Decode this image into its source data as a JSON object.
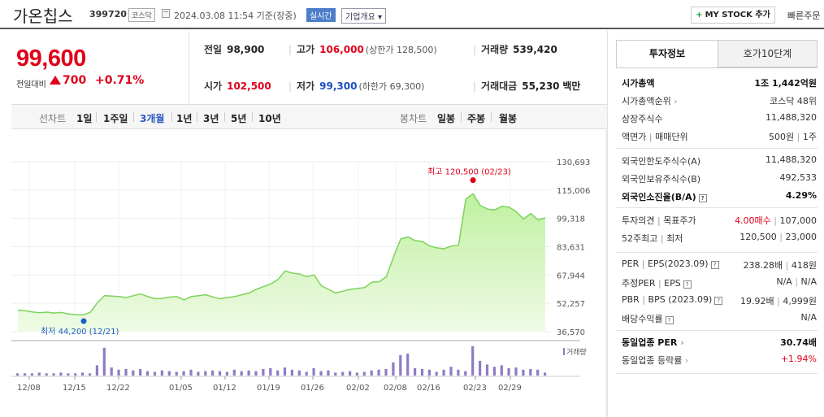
{
  "header": {
    "name": "가온칩스",
    "code": "399720",
    "market": "코스닥",
    "datetime": "2024.03.08 11:54 기준(장중)",
    "realtime_badge": "실시간",
    "corp_info_label": "기업개요 ▾",
    "mystock_label": "MY STOCK 추가",
    "mystock_plus": "+",
    "quick_order_label": "빠른주문"
  },
  "price": {
    "current": "99,600",
    "compare_label": "전일대비",
    "change": "700",
    "change_pct": "+0.71%",
    "direction": "up"
  },
  "stats": {
    "prev_close": {
      "label": "전일",
      "value": "98,900"
    },
    "open": {
      "label": "시가",
      "value": "102,500"
    },
    "high": {
      "label": "고가",
      "value": "106,000",
      "sub": "(상한가 128,500)"
    },
    "low": {
      "label": "저가",
      "value": "99,300",
      "sub": "(하한가 69,300)"
    },
    "volume": {
      "label": "거래량",
      "value": "539,420"
    },
    "amount": {
      "label": "거래대금",
      "value": "55,230",
      "unit": "백만"
    }
  },
  "period_bar": {
    "line_label": "선차트",
    "line_items": [
      "1일",
      "1주일",
      "3개월",
      "1년",
      "3년",
      "5년",
      "10년"
    ],
    "active": "3개월",
    "candle_label": "봉차트",
    "candle_items": [
      "일봉",
      "주봉",
      "월봉"
    ]
  },
  "chart_data": {
    "type": "area",
    "y_ticks": [
      "130,693",
      "115,006",
      "99,318",
      "83,631",
      "67,944",
      "52,257",
      "36,570"
    ],
    "ylim": [
      36570,
      130693
    ],
    "x_ticks": [
      "12/08",
      "12/15",
      "12/22",
      "01/05",
      "01/12",
      "01/19",
      "01/26",
      "02/02",
      "02/08",
      "02/16",
      "02/23",
      "02/29"
    ],
    "high_annotation": "최고 120,500 (02/23)",
    "low_annotation": "최저 44,200 (12/21)",
    "high_value": 120500,
    "low_value": 44200,
    "colors": {
      "line": "#7dd35a",
      "fill": "#c8f0a8",
      "marker": "#e0001a",
      "low_marker": "#1a5fc4",
      "volume": "#8e7cc3"
    },
    "prices": [
      48500,
      48200,
      47500,
      47000,
      47400,
      46900,
      47200,
      46400,
      46000,
      45800,
      47200,
      52500,
      56500,
      56300,
      56000,
      55500,
      56500,
      57500,
      56000,
      54800,
      55000,
      55700,
      56000,
      54200,
      56000,
      56500,
      57000,
      55800,
      54800,
      55500,
      56000,
      57000,
      58000,
      60000,
      61500,
      63000,
      65500,
      70200,
      69000,
      68500,
      67000,
      68000,
      62000,
      60000,
      58000,
      59000,
      60000,
      60500,
      61000,
      64000,
      64200,
      67000,
      78000,
      88000,
      89000,
      87000,
      86500,
      84000,
      83000,
      82500,
      84000,
      84500,
      110000,
      113000,
      106500,
      104500,
      104000,
      106000,
      105500,
      103000,
      99000,
      102000,
      98500,
      99600
    ],
    "volume_label": "거래량",
    "volumes": [
      3,
      3,
      3,
      4,
      3,
      3,
      4,
      3,
      3,
      4,
      3,
      14,
      38,
      11,
      8,
      9,
      7,
      9,
      6,
      5,
      7,
      6,
      5,
      6,
      8,
      5,
      6,
      7,
      6,
      5,
      8,
      6,
      7,
      6,
      9,
      10,
      7,
      11,
      8,
      7,
      5,
      10,
      6,
      7,
      4,
      5,
      6,
      4,
      5,
      7,
      8,
      9,
      18,
      28,
      30,
      10,
      9,
      8,
      5,
      8,
      12,
      8,
      6,
      40,
      20,
      15,
      12,
      14,
      10,
      11,
      8,
      9,
      8,
      4
    ]
  },
  "right_panel": {
    "tabs": [
      "투자정보",
      "호가10단계"
    ],
    "active_tab": "투자정보",
    "g1": [
      {
        "k": "시가총액",
        "v": "1조 1,442억원",
        "bold": true
      },
      {
        "k": "시가총액순위",
        "v": "코스닥 48위",
        "arrow": "›"
      },
      {
        "k": "상장주식수",
        "v": "11,488,320"
      },
      {
        "k": "액면가",
        "k2": "매매단위",
        "v": "500원",
        "v2": "1주"
      }
    ],
    "g2": [
      {
        "k": "외국인한도주식수(A)",
        "v": "11,488,320"
      },
      {
        "k": "외국인보유주식수(B)",
        "v": "492,533"
      },
      {
        "k": "외국인소진율(B/A)",
        "v": "4.29%",
        "bold": true,
        "hint": "?"
      }
    ],
    "g3": [
      {
        "k": "투자의견",
        "k2": "목표주가",
        "v": "4.00매수",
        "v2": "107,000",
        "vred": true
      },
      {
        "k": "52주최고",
        "k2": "최저",
        "v": "120,500",
        "v2": "23,000"
      }
    ],
    "g4": [
      {
        "k": "PER",
        "k2": "EPS(2023.09)",
        "v": "238.28배",
        "v2": "418원",
        "hint": "?"
      },
      {
        "k": "추정PER",
        "k2": "EPS",
        "v": "N/A",
        "v2": "N/A",
        "hint": "?"
      },
      {
        "k": "PBR",
        "k2": "BPS (2023.09)",
        "v": "19.92배",
        "v2": "4,999원",
        "hint": "?"
      },
      {
        "k": "배당수익률",
        "v": "N/A",
        "hint": "?"
      }
    ],
    "g5": [
      {
        "k": "동일업종 PER",
        "v": "30.74배",
        "bold": true,
        "arrow": "›"
      },
      {
        "k": "동일업종 등락률",
        "v": "+1.94%",
        "vred": true,
        "arrow": "›"
      }
    ]
  }
}
